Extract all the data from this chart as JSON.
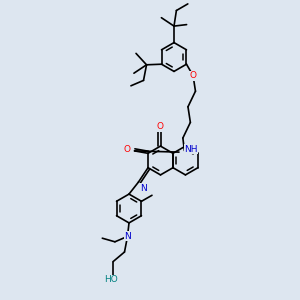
{
  "background_color": "#dde6f0",
  "line_color": "#000000",
  "bond_width": 1.2,
  "atom_colors": {
    "O": "#ff0000",
    "N": "#0000cd",
    "H_teal": "#008080",
    "C": "#000000"
  },
  "font_size": 6.5
}
